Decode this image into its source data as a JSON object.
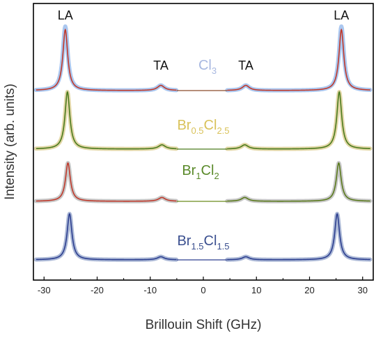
{
  "chart_data": {
    "type": "line",
    "xlabel": "Brillouin Shift (GHz)",
    "ylabel": "Intensity (arb. units)",
    "xlim": [
      -32,
      32
    ],
    "xticks": [
      -30,
      -20,
      -10,
      0,
      10,
      20,
      30
    ],
    "grid": false,
    "peak_annotations": [
      {
        "text": "LA",
        "x": -26
      },
      {
        "text": "TA",
        "x": -8
      },
      {
        "text": "TA",
        "x": 8
      },
      {
        "text": "LA",
        "x": 26
      }
    ],
    "series": [
      {
        "name_base": "Cl",
        "name_sub": "3",
        "label_color": "#a8b8e0",
        "data_color": "#8fb4ea",
        "fit_color": "#c0392b",
        "gap_color": "#8b4a2b",
        "la_pos": 26.0,
        "ta_pos": 8.0,
        "la_height": 1.0,
        "la_fit_height": 0.95,
        "ta_height": 0.08
      },
      {
        "name_base": "Br",
        "name_sub": "0.5",
        "name_base2": "Cl",
        "name_sub2": "2.5",
        "label_color": "#d9c25a",
        "data_color": "#d8c98a",
        "fit_color": "#4a7a1c",
        "gap_color": "#4a7a1c",
        "la_pos": 25.6,
        "ta_pos": 7.8,
        "la_height": 0.95,
        "la_fit_height": 0.95,
        "ta_height": 0.07
      },
      {
        "name_base": "Br",
        "name_sub": "1",
        "name_base2": "Cl",
        "name_sub2": "2",
        "label_color": "#5a8a2a",
        "data_color": "#b4b4b4",
        "fit_color": "#c0392b",
        "fit_color_right": "#5a7a1c",
        "gap_color": "#6a8a1c",
        "la_pos": 25.5,
        "ta_pos": 7.8,
        "la_height": 0.7,
        "la_fit_height": 0.7,
        "ta_height": 0.07
      },
      {
        "name_base": "Br",
        "name_sub": "1.5",
        "name_base2": "Cl",
        "name_sub2": "1.5",
        "label_color": "#3a4f8f",
        "data_color": "#8fa0c8",
        "fit_color": "#2c3e8f",
        "gap_color": "#2c3e8f",
        "la_pos": 25.2,
        "ta_pos": 8.0,
        "la_height": 0.9,
        "la_fit_height": 0.9,
        "ta_height": 0.06
      }
    ]
  }
}
